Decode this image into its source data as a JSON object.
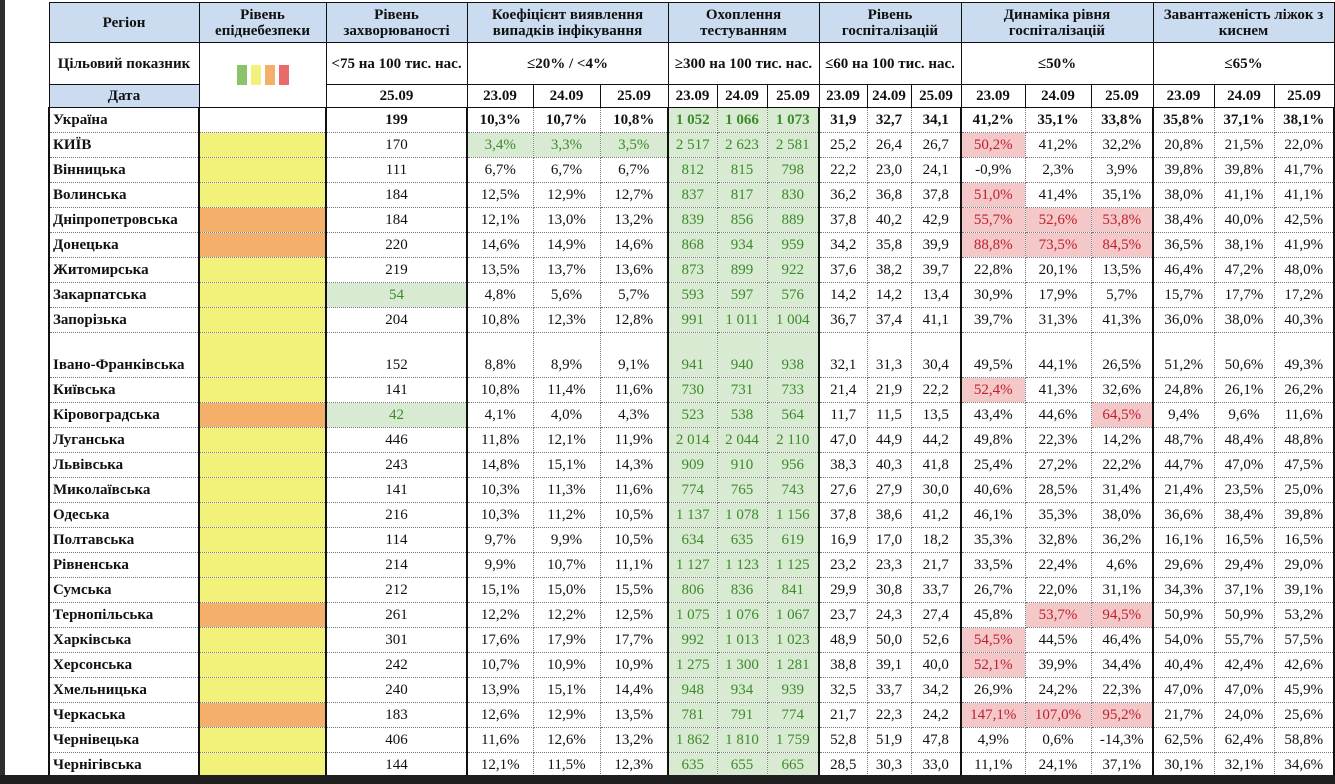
{
  "headers": {
    "region": "Регіон",
    "epi_level": "Рівень епіднебезпеки",
    "incidence": "Рівень захворюваності",
    "detection": "Коефіцієнт виявлення випадків інфікування",
    "testing": "Охоплення тестуванням",
    "hospitalization": "Рівень госпіталізацій",
    "hosp_dynamics": "Динаміка рівня госпіталізацій",
    "oxygen_beds": "Завантаженість ліжок з киснем"
  },
  "targets": {
    "label": "Цільовий показник",
    "incidence": "<75 на 100 тис. нас.",
    "detection": "≤20% / <4%",
    "testing": "≥300 на 100 тис. нас.",
    "hospitalization": "≤60 на 100 тис. нас.",
    "hosp_dynamics": "≤50%",
    "oxygen_beds": "≤65%"
  },
  "legend_colors": [
    "#8cc26a",
    "#f2f27a",
    "#f4b06a",
    "#e86a6a"
  ],
  "date_label": "Дата",
  "incidence_date": "25.09",
  "dates": [
    "23.09",
    "24.09",
    "25.09"
  ],
  "colors": {
    "yellow": "#f2f27a",
    "orange": "#f4b06a",
    "green_bg": "#d9ead3",
    "red_bg": "#f4c7c9"
  },
  "rows": [
    {
      "name": "Україна",
      "level": "",
      "inc": "199",
      "det": [
        "10,3%",
        "10,7%",
        "10,8%"
      ],
      "test": [
        "1 052",
        "1 066",
        "1 073"
      ],
      "hosp": [
        "31,9",
        "32,7",
        "34,1"
      ],
      "dyn": [
        "41,2%",
        "35,1%",
        "33,8%"
      ],
      "beds": [
        "35,8%",
        "37,1%",
        "38,1%"
      ]
    },
    {
      "name": "КИЇВ",
      "level": "yellow",
      "inc": "170",
      "det": [
        "3,4%",
        "3,3%",
        "3,5%"
      ],
      "test": [
        "2 517",
        "2 623",
        "2 581"
      ],
      "hosp": [
        "25,2",
        "26,4",
        "26,7"
      ],
      "dyn": [
        "50,2%",
        "41,2%",
        "32,2%"
      ],
      "beds": [
        "20,8%",
        "21,5%",
        "22,0%"
      ]
    },
    {
      "name": "Вінницька",
      "level": "yellow",
      "inc": "111",
      "det": [
        "6,7%",
        "6,7%",
        "6,7%"
      ],
      "test": [
        "812",
        "815",
        "798"
      ],
      "hosp": [
        "22,2",
        "23,0",
        "24,1"
      ],
      "dyn": [
        "-0,9%",
        "2,3%",
        "3,9%"
      ],
      "beds": [
        "39,8%",
        "39,8%",
        "41,7%"
      ]
    },
    {
      "name": "Волинська",
      "level": "yellow",
      "inc": "184",
      "det": [
        "12,5%",
        "12,9%",
        "12,7%"
      ],
      "test": [
        "837",
        "817",
        "830"
      ],
      "hosp": [
        "36,2",
        "36,8",
        "37,8"
      ],
      "dyn": [
        "51,0%",
        "41,4%",
        "35,1%"
      ],
      "beds": [
        "38,0%",
        "41,1%",
        "41,1%"
      ]
    },
    {
      "name": "Дніпропетровська",
      "level": "orange",
      "inc": "184",
      "det": [
        "12,1%",
        "13,0%",
        "13,2%"
      ],
      "test": [
        "839",
        "856",
        "889"
      ],
      "hosp": [
        "37,8",
        "40,2",
        "42,9"
      ],
      "dyn": [
        "55,7%",
        "52,6%",
        "53,8%"
      ],
      "beds": [
        "38,4%",
        "40,0%",
        "42,5%"
      ]
    },
    {
      "name": "Донецька",
      "level": "orange",
      "inc": "220",
      "det": [
        "14,6%",
        "14,9%",
        "14,6%"
      ],
      "test": [
        "868",
        "934",
        "959"
      ],
      "hosp": [
        "34,2",
        "35,8",
        "39,9"
      ],
      "dyn": [
        "88,8%",
        "73,5%",
        "84,5%"
      ],
      "beds": [
        "36,5%",
        "38,1%",
        "41,9%"
      ]
    },
    {
      "name": "Житомирська",
      "level": "yellow",
      "inc": "219",
      "det": [
        "13,5%",
        "13,7%",
        "13,6%"
      ],
      "test": [
        "873",
        "899",
        "922"
      ],
      "hosp": [
        "37,6",
        "38,2",
        "39,7"
      ],
      "dyn": [
        "22,8%",
        "20,1%",
        "13,5%"
      ],
      "beds": [
        "46,4%",
        "47,2%",
        "48,0%"
      ]
    },
    {
      "name": "Закарпатська",
      "level": "yellow",
      "inc": "54",
      "det": [
        "4,8%",
        "5,6%",
        "5,7%"
      ],
      "test": [
        "593",
        "597",
        "576"
      ],
      "hosp": [
        "14,2",
        "14,2",
        "13,4"
      ],
      "dyn": [
        "30,9%",
        "17,9%",
        "5,7%"
      ],
      "beds": [
        "15,7%",
        "17,7%",
        "17,2%"
      ]
    },
    {
      "name": "Запорізька",
      "level": "yellow",
      "inc": "204",
      "det": [
        "10,8%",
        "12,3%",
        "12,8%"
      ],
      "test": [
        "991",
        "1 011",
        "1 004"
      ],
      "hosp": [
        "36,7",
        "37,4",
        "41,1"
      ],
      "dyn": [
        "39,7%",
        "31,3%",
        "41,3%"
      ],
      "beds": [
        "36,0%",
        "38,0%",
        "40,3%"
      ]
    },
    {
      "name": "Івано-Франківська",
      "level": "yellow",
      "inc": "152",
      "det": [
        "8,8%",
        "8,9%",
        "9,1%"
      ],
      "test": [
        "941",
        "940",
        "938"
      ],
      "hosp": [
        "32,1",
        "31,3",
        "30,4"
      ],
      "dyn": [
        "49,5%",
        "44,1%",
        "26,5%"
      ],
      "beds": [
        "51,2%",
        "50,6%",
        "49,3%"
      ]
    },
    {
      "name": "Київська",
      "level": "yellow",
      "inc": "141",
      "det": [
        "10,8%",
        "11,4%",
        "11,6%"
      ],
      "test": [
        "730",
        "731",
        "733"
      ],
      "hosp": [
        "21,4",
        "21,9",
        "22,2"
      ],
      "dyn": [
        "52,4%",
        "41,3%",
        "32,6%"
      ],
      "beds": [
        "24,8%",
        "26,1%",
        "26,2%"
      ]
    },
    {
      "name": "Кіровоградська",
      "level": "orange",
      "inc": "42",
      "det": [
        "4,1%",
        "4,0%",
        "4,3%"
      ],
      "test": [
        "523",
        "538",
        "564"
      ],
      "hosp": [
        "11,7",
        "11,5",
        "13,5"
      ],
      "dyn": [
        "43,4%",
        "44,6%",
        "64,5%"
      ],
      "beds": [
        "9,4%",
        "9,6%",
        "11,6%"
      ]
    },
    {
      "name": "Луганська",
      "level": "yellow",
      "inc": "446",
      "det": [
        "11,8%",
        "12,1%",
        "11,9%"
      ],
      "test": [
        "2 014",
        "2 044",
        "2 110"
      ],
      "hosp": [
        "47,0",
        "44,9",
        "44,2"
      ],
      "dyn": [
        "49,8%",
        "22,3%",
        "14,2%"
      ],
      "beds": [
        "48,7%",
        "48,4%",
        "48,8%"
      ]
    },
    {
      "name": "Львівська",
      "level": "yellow",
      "inc": "243",
      "det": [
        "14,8%",
        "15,1%",
        "14,3%"
      ],
      "test": [
        "909",
        "910",
        "956"
      ],
      "hosp": [
        "38,3",
        "40,3",
        "41,8"
      ],
      "dyn": [
        "25,4%",
        "27,2%",
        "22,2%"
      ],
      "beds": [
        "44,7%",
        "47,0%",
        "47,5%"
      ]
    },
    {
      "name": "Миколаївська",
      "level": "yellow",
      "inc": "141",
      "det": [
        "10,3%",
        "11,3%",
        "11,6%"
      ],
      "test": [
        "774",
        "765",
        "743"
      ],
      "hosp": [
        "27,6",
        "27,9",
        "30,0"
      ],
      "dyn": [
        "40,6%",
        "28,5%",
        "31,4%"
      ],
      "beds": [
        "21,4%",
        "23,5%",
        "25,0%"
      ]
    },
    {
      "name": "Одеська",
      "level": "yellow",
      "inc": "216",
      "det": [
        "10,3%",
        "11,2%",
        "10,5%"
      ],
      "test": [
        "1 137",
        "1 078",
        "1 156"
      ],
      "hosp": [
        "37,8",
        "38,6",
        "41,2"
      ],
      "dyn": [
        "46,1%",
        "35,3%",
        "38,0%"
      ],
      "beds": [
        "36,6%",
        "38,4%",
        "39,8%"
      ]
    },
    {
      "name": "Полтавська",
      "level": "yellow",
      "inc": "114",
      "det": [
        "9,7%",
        "9,9%",
        "10,5%"
      ],
      "test": [
        "634",
        "635",
        "619"
      ],
      "hosp": [
        "16,9",
        "17,0",
        "18,2"
      ],
      "dyn": [
        "35,3%",
        "32,8%",
        "36,2%"
      ],
      "beds": [
        "16,1%",
        "16,5%",
        "16,5%"
      ]
    },
    {
      "name": "Рівненська",
      "level": "yellow",
      "inc": "214",
      "det": [
        "9,9%",
        "10,7%",
        "11,1%"
      ],
      "test": [
        "1 127",
        "1 123",
        "1 125"
      ],
      "hosp": [
        "23,2",
        "23,3",
        "21,7"
      ],
      "dyn": [
        "33,5%",
        "22,4%",
        "4,6%"
      ],
      "beds": [
        "29,6%",
        "29,4%",
        "29,0%"
      ]
    },
    {
      "name": "Сумська",
      "level": "yellow",
      "inc": "212",
      "det": [
        "15,1%",
        "15,0%",
        "15,5%"
      ],
      "test": [
        "806",
        "836",
        "841"
      ],
      "hosp": [
        "29,9",
        "30,8",
        "33,7"
      ],
      "dyn": [
        "26,7%",
        "22,0%",
        "31,1%"
      ],
      "beds": [
        "34,3%",
        "37,1%",
        "39,1%"
      ]
    },
    {
      "name": "Тернопільська",
      "level": "orange",
      "inc": "261",
      "det": [
        "12,2%",
        "12,2%",
        "12,5%"
      ],
      "test": [
        "1 075",
        "1 076",
        "1 067"
      ],
      "hosp": [
        "23,7",
        "24,3",
        "27,4"
      ],
      "dyn": [
        "45,8%",
        "53,7%",
        "94,5%"
      ],
      "beds": [
        "50,9%",
        "50,9%",
        "53,2%"
      ]
    },
    {
      "name": "Харківська",
      "level": "yellow",
      "inc": "301",
      "det": [
        "17,6%",
        "17,9%",
        "17,7%"
      ],
      "test": [
        "992",
        "1 013",
        "1 023"
      ],
      "hosp": [
        "48,9",
        "50,0",
        "52,6"
      ],
      "dyn": [
        "54,5%",
        "44,5%",
        "46,4%"
      ],
      "beds": [
        "54,0%",
        "55,7%",
        "57,5%"
      ]
    },
    {
      "name": "Херсонська",
      "level": "yellow",
      "inc": "242",
      "det": [
        "10,7%",
        "10,9%",
        "10,9%"
      ],
      "test": [
        "1 275",
        "1 300",
        "1 281"
      ],
      "hosp": [
        "38,8",
        "39,1",
        "40,0"
      ],
      "dyn": [
        "52,1%",
        "39,9%",
        "34,4%"
      ],
      "beds": [
        "40,4%",
        "42,4%",
        "42,6%"
      ]
    },
    {
      "name": "Хмельницька",
      "level": "yellow",
      "inc": "240",
      "det": [
        "13,9%",
        "15,1%",
        "14,4%"
      ],
      "test": [
        "948",
        "934",
        "939"
      ],
      "hosp": [
        "32,5",
        "33,7",
        "34,2"
      ],
      "dyn": [
        "26,9%",
        "24,2%",
        "22,3%"
      ],
      "beds": [
        "47,0%",
        "47,0%",
        "45,9%"
      ]
    },
    {
      "name": "Черкаська",
      "level": "orange",
      "inc": "183",
      "det": [
        "12,6%",
        "12,9%",
        "13,5%"
      ],
      "test": [
        "781",
        "791",
        "774"
      ],
      "hosp": [
        "21,7",
        "22,3",
        "24,2"
      ],
      "dyn": [
        "147,1%",
        "107,0%",
        "95,2%"
      ],
      "beds": [
        "21,7%",
        "24,0%",
        "25,6%"
      ]
    },
    {
      "name": "Чернівецька",
      "level": "yellow",
      "inc": "406",
      "det": [
        "11,6%",
        "12,6%",
        "13,2%"
      ],
      "test": [
        "1 862",
        "1 810",
        "1 759"
      ],
      "hosp": [
        "52,8",
        "51,9",
        "47,8"
      ],
      "dyn": [
        "4,9%",
        "0,6%",
        "-14,3%"
      ],
      "beds": [
        "62,5%",
        "62,4%",
        "58,8%"
      ]
    },
    {
      "name": "Чернігівська",
      "level": "yellow",
      "inc": "144",
      "det": [
        "12,1%",
        "11,5%",
        "12,3%"
      ],
      "test": [
        "635",
        "655",
        "665"
      ],
      "hosp": [
        "28,5",
        "30,3",
        "33,0"
      ],
      "dyn": [
        "11,1%",
        "24,1%",
        "37,1%"
      ],
      "beds": [
        "30,1%",
        "32,1%",
        "34,6%"
      ]
    }
  ]
}
